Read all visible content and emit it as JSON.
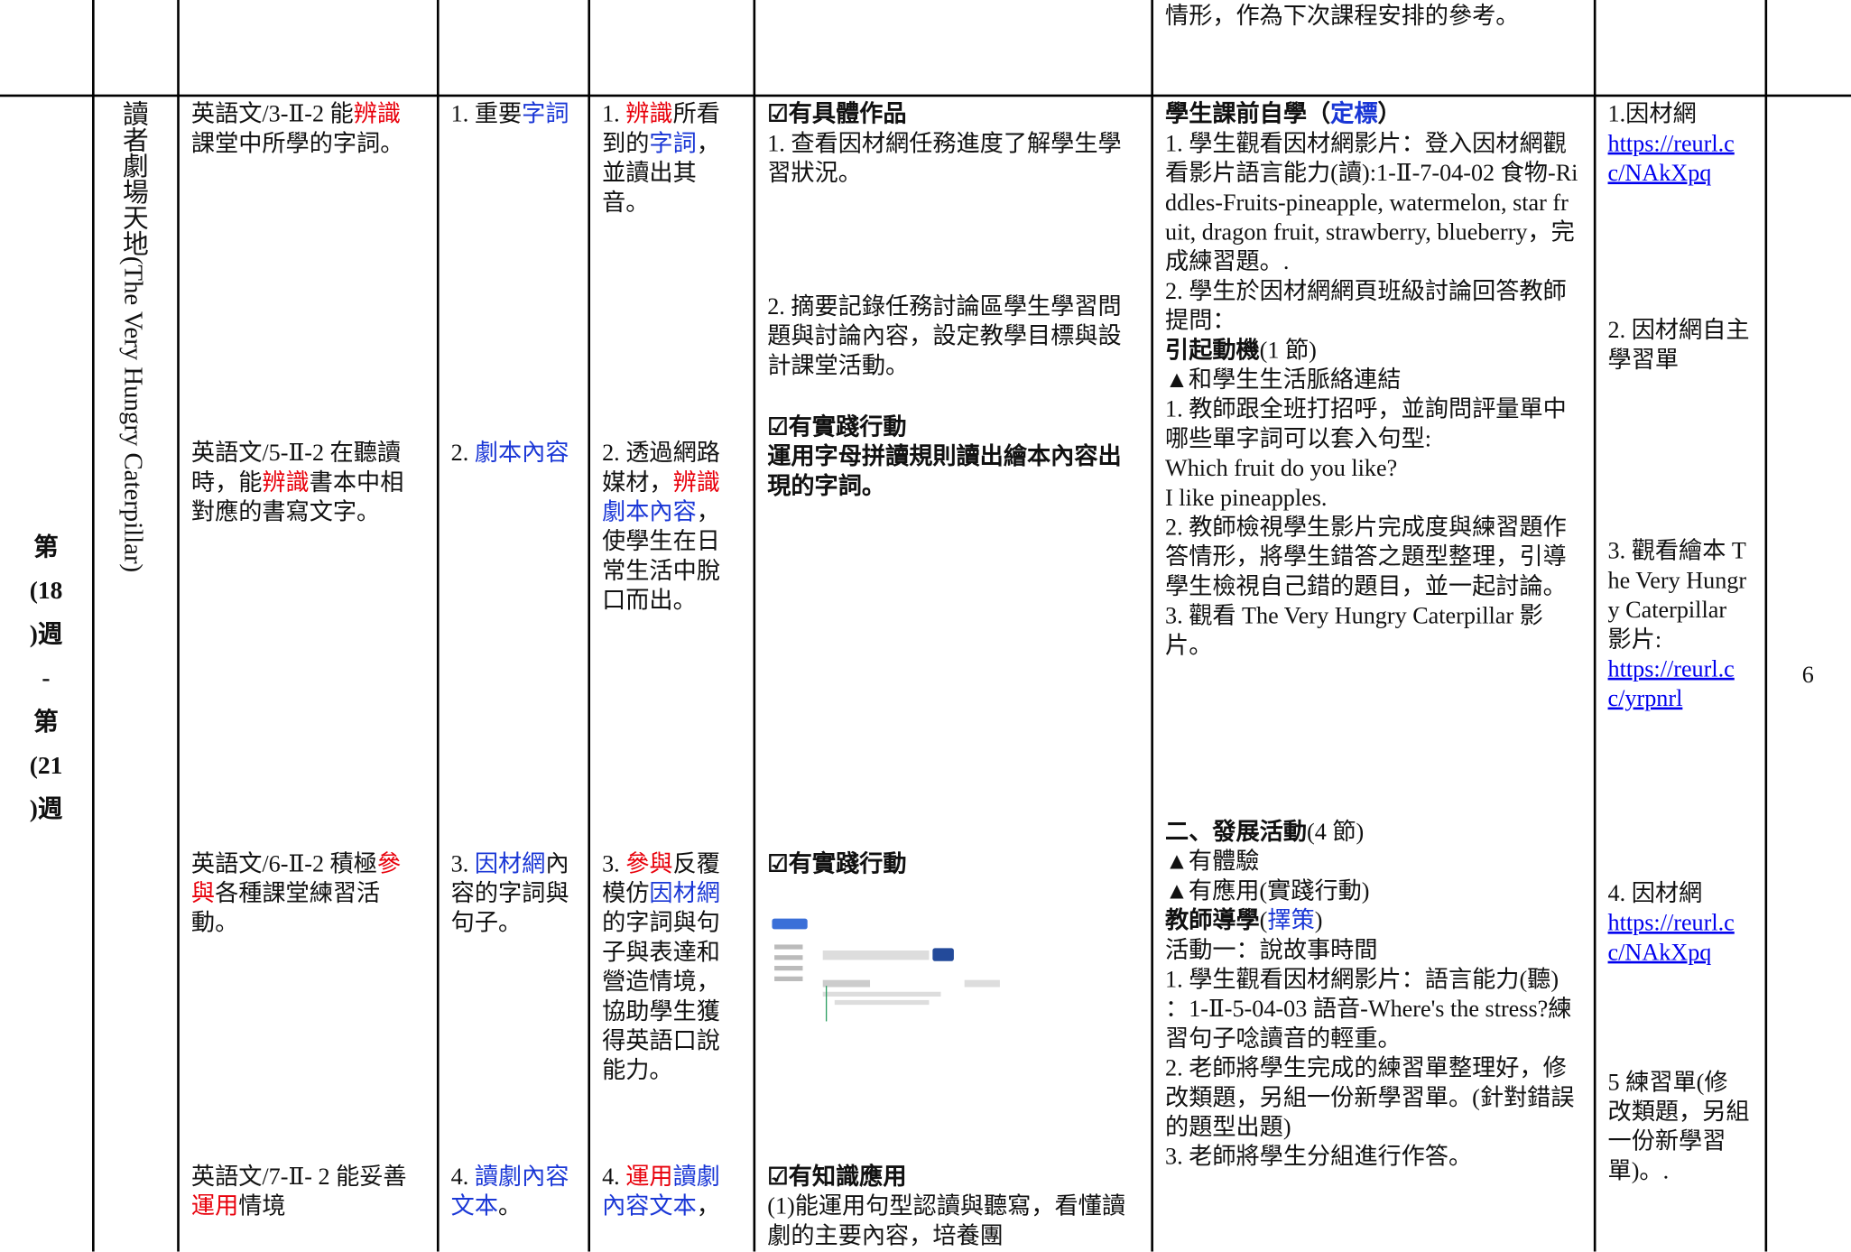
{
  "table": {
    "rows": [
      {
        "cells": [
          [],
          [],
          [],
          [],
          [],
          [],
          [
            [
              [
                {
                  "text": "情形，作為下次課程安排的參考。"
                }
              ]
            ]
          ],
          [],
          []
        ]
      },
      {
        "cells": [
          [
            [
              [
                {
                  "text": "第",
                  "bold": true
                }
              ],
              [
                {
                  "text": "(18",
                  "bold": true
                }
              ],
              [
                {
                  "text": ")週",
                  "bold": true
                }
              ],
              [
                {
                  "text": "-",
                  "bold": true
                }
              ],
              [
                {
                  "text": "第",
                  "bold": true
                }
              ],
              [
                {
                  "text": "(21",
                  "bold": true
                }
              ],
              [
                {
                  "text": ")週",
                  "bold": true
                }
              ]
            ]
          ],
          [
            [
              [
                {
                  "text": "讀者劇場天地(The Very Hungry Caterpillar)"
                }
              ]
            ]
          ],
          [
            [
              [
                {
                  "text": "英語文/3-Ⅱ-2 能"
                },
                {
                  "text": "辨識",
                  "color": "#e8000b"
                },
                {
                  "text": "課堂中所學的字詞。"
                }
              ]
            ],
            [
              [
                {
                  "text": "英語文/5-Ⅱ-2 在聽讀時，能"
                },
                {
                  "text": "辨識",
                  "color": "#e8000b"
                },
                {
                  "text": "書本中相對應的書寫文字。"
                }
              ]
            ],
            [
              [
                {
                  "text": "英語文/6-Ⅱ-2 積極"
                },
                {
                  "text": "參與",
                  "color": "#e8000b"
                },
                {
                  "text": "各種課堂練習活動。"
                }
              ]
            ],
            [
              [
                {
                  "text": "英語文/7-Ⅱ- 2 能妥善"
                },
                {
                  "text": "運用",
                  "color": "#e8000b"
                },
                {
                  "text": "情境"
                }
              ]
            ]
          ],
          [
            [
              [
                {
                  "text": "1. 重要"
                },
                {
                  "text": "字詞",
                  "color": "#1a37d6"
                }
              ]
            ],
            [
              [
                {
                  "text": "2. "
                },
                {
                  "text": "劇本內容",
                  "color": "#1a37d6"
                }
              ]
            ],
            [
              [
                {
                  "text": "3. "
                },
                {
                  "text": "因材網",
                  "color": "#1a37d6"
                },
                {
                  "text": "內容的字詞與句子。"
                }
              ]
            ],
            [
              [
                {
                  "text": "4. "
                },
                {
                  "text": "讀劇內容文本",
                  "color": "#1a37d6"
                },
                {
                  "text": "。"
                }
              ]
            ]
          ],
          [
            [
              [
                {
                  "text": "1. "
                },
                {
                  "text": "辨識",
                  "color": "#e8000b"
                },
                {
                  "text": "所看到的"
                },
                {
                  "text": "字詞",
                  "color": "#1a37d6"
                },
                {
                  "text": "，並讀出其音。"
                }
              ]
            ],
            [
              [
                {
                  "text": "2. 透過網路媒材，"
                },
                {
                  "text": "辨識",
                  "color": "#e8000b"
                },
                {
                  "text": "劇本內容",
                  "color": "#1a37d6"
                },
                {
                  "text": "，使學生在日常生活中脫口而出。"
                }
              ]
            ],
            [
              [
                {
                  "text": "3. "
                },
                {
                  "text": "參與",
                  "color": "#e8000b"
                },
                {
                  "text": "反覆模仿"
                },
                {
                  "text": "因材網",
                  "color": "#1a37d6"
                },
                {
                  "text": "的字詞與句子與表達和營造情境，協助學生獲得英語口說能力。"
                }
              ]
            ],
            [
              [
                {
                  "text": "4. "
                },
                {
                  "text": "運用",
                  "color": "#e8000b"
                },
                {
                  "text": "讀劇內容文本",
                  "color": "#1a37d6"
                },
                {
                  "text": "，"
                }
              ]
            ]
          ],
          [
            [
              [
                {
                  "text": "☑有具體作品",
                  "bold": true
                }
              ],
              [
                {
                  "text": "1. 查看因材網任務進度了解學生學習狀況。"
                }
              ]
            ],
            [
              [
                {
                  "text": "2. 摘要記錄任務討論區學生學習問題與討論內容，設定教學目標與設計課堂活動。"
                }
              ]
            ],
            [
              [
                {
                  "text": "☑有實踐行動",
                  "bold": true
                }
              ],
              [
                {
                  "text": "運用字母拼讀規則讀出繪本內容出現的字詞。",
                  "bold": true
                }
              ]
            ],
            [
              [
                {
                  "text": "☑有實踐行動",
                  "bold": true
                }
              ]
            ],
            [
              [
                {
                  "text": "☑有知識應用",
                  "bold": true
                }
              ],
              [
                {
                  "text": "(1)能運用句型認讀與聽寫，看懂讀劇的主要內容，培養團"
                }
              ]
            ]
          ],
          [
            [
              [
                {
                  "text": "學生課前自學（",
                  "bold": true
                },
                {
                  "text": "定標",
                  "bold": true,
                  "color": "#1a37d6"
                },
                {
                  "text": "）",
                  "bold": true
                }
              ],
              [
                {
                  "text": "1. 學生觀看因材網影片：登入因材網觀看影片語言能力(讀):1-Ⅱ-7-04-02 食物-Riddles-Fruits-pineapple, watermelon, star fruit, dragon fruit, strawberry, blueberry，完成練習題。."
                }
              ],
              [
                {
                  "text": "2. 學生於因材網網頁班級討論回答教師提問："
                }
              ],
              [
                {
                  "text": "引起動機",
                  "bold": true
                },
                {
                  "text": "(1 節)"
                }
              ],
              [
                {
                  "text": "▲和學生生活脈絡連結"
                }
              ],
              [
                {
                  "text": "1. 教師跟全班打招呼，並詢問評量單中哪些單字詞可以套入句型:"
                }
              ],
              [
                {
                  "text": "Which fruit do you like?"
                }
              ],
              [
                {
                  "text": "I like pineapples."
                }
              ],
              [
                {
                  "text": "2. 教師檢視學生影片完成度與練習題作答情形，將學生錯答之題型整理，引導學生檢視自己錯的題目，並一起討論。"
                }
              ],
              [
                {
                  "text": "3. 觀看 The Very Hungry Caterpillar 影片。"
                }
              ]
            ],
            [
              [
                {
                  "text": "二、發展活動",
                  "bold": true
                },
                {
                  "text": "(4 節)"
                }
              ],
              [
                {
                  "text": "▲有體驗"
                }
              ],
              [
                {
                  "text": "▲有應用(實踐行動)"
                }
              ],
              [
                {
                  "text": "教師導學",
                  "bold": true
                },
                {
                  "text": "("
                },
                {
                  "text": "擇策",
                  "color": "#1a37d6"
                },
                {
                  "text": ")"
                }
              ],
              [
                {
                  "text": "活動一：說故事時間"
                }
              ],
              [
                {
                  "text": "1. 學生觀看因材網影片：語言能力(聽) ：1-Ⅱ-5-04-03 語音-Where's the stress?練習句子唸讀音的輕重。"
                }
              ],
              [
                {
                  "text": "2. 老師將學生完成的練習單整理好，修改類題，另組一份新學習單。(針對錯誤的題型出題)"
                }
              ],
              [
                {
                  "text": "3. 老師將學生分組進行作答。"
                }
              ]
            ]
          ],
          [
            [
              [
                {
                  "text": "1.因材網"
                }
              ],
              [
                {
                  "text": "https://reurl.cc/NAkXpq",
                  "link": true
                }
              ]
            ],
            [
              [
                {
                  "text": "2. 因材網自主學習單"
                }
              ]
            ],
            [
              [
                {
                  "text": "3. 觀看繪本 The Very Hungry Caterpillar 影片:"
                }
              ],
              [
                {
                  "text": "https://reurl.cc/yrpnrl",
                  "link": true
                }
              ]
            ],
            [
              [
                {
                  "text": "4. 因材網"
                }
              ],
              [
                {
                  "text": "https://reurl.cc/NAkXpq",
                  "link": true
                }
              ]
            ],
            [
              [
                {
                  "text": "5 練習單(修改類題，另組一份新學習單)。."
                }
              ]
            ]
          ],
          [
            [
              [
                {
                  "text": "6"
                }
              ]
            ]
          ]
        ]
      }
    ]
  }
}
